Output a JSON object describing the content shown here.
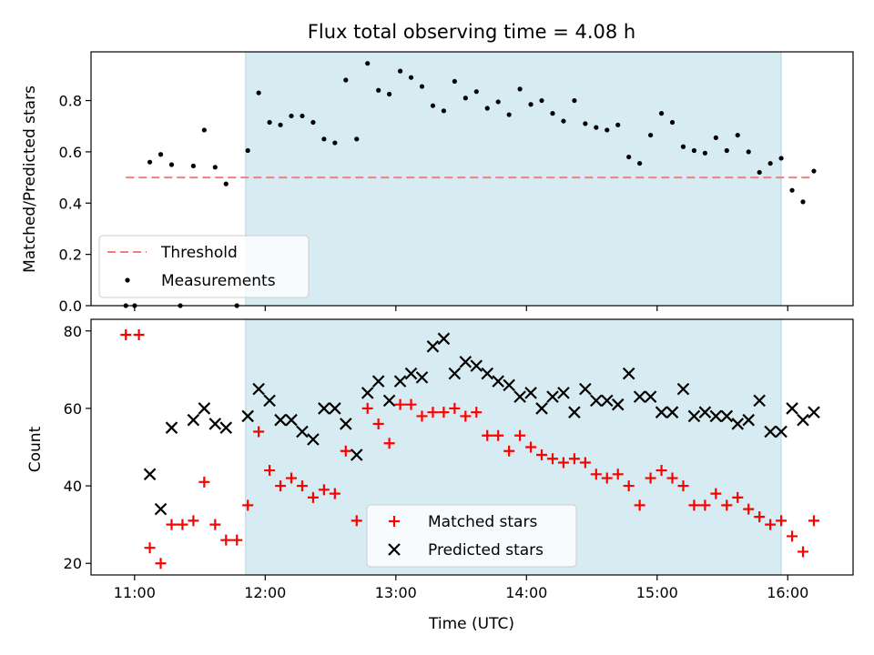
{
  "chart_data": [
    {
      "type": "scatter",
      "title": "Flux total observing time = 4.08 h",
      "xlabel": "",
      "ylabel": "Matched/Predicted stars",
      "xlim": [
        "10:40",
        "16:30"
      ],
      "ylim": [
        0.0,
        0.99
      ],
      "x_ticks": [
        "11:00",
        "12:00",
        "13:00",
        "14:00",
        "15:00",
        "16:00"
      ],
      "y_ticks": [
        "0.0",
        "0.2",
        "0.4",
        "0.6",
        "0.8"
      ],
      "tick_labels_x_shown": false,
      "shaded_interval": {
        "start": "11:51",
        "end": "15:57",
        "color": "#add8e6"
      },
      "threshold": {
        "name": "Threshold",
        "value": 0.5,
        "x_range": [
          "10:56",
          "16:12"
        ],
        "color": "#f08080",
        "style": "dashed"
      },
      "legend": {
        "placement": "lower-left",
        "entries": [
          "Threshold",
          "Measurements"
        ]
      },
      "series": [
        {
          "name": "Measurements",
          "color": "#000000",
          "marker": "dot",
          "points": [
            [
              "10:56",
              0.0
            ],
            [
              "11:00",
              0.0
            ],
            [
              "11:07",
              0.56
            ],
            [
              "11:12",
              0.59
            ],
            [
              "11:17",
              0.55
            ],
            [
              "11:21",
              0.0
            ],
            [
              "11:27",
              0.545
            ],
            [
              "11:32",
              0.685
            ],
            [
              "11:37",
              0.54
            ],
            [
              "11:42",
              0.475
            ],
            [
              "11:47",
              0.0
            ],
            [
              "11:52",
              0.605
            ],
            [
              "11:57",
              0.83
            ],
            [
              "12:02",
              0.715
            ],
            [
              "12:07",
              0.705
            ],
            [
              "12:12",
              0.74
            ],
            [
              "12:17",
              0.74
            ],
            [
              "12:22",
              0.715
            ],
            [
              "12:27",
              0.65
            ],
            [
              "12:32",
              0.635
            ],
            [
              "12:37",
              0.88
            ],
            [
              "12:42",
              0.65
            ],
            [
              "12:47",
              0.945
            ],
            [
              "12:52",
              0.84
            ],
            [
              "12:57",
              0.825
            ],
            [
              "13:02",
              0.915
            ],
            [
              "13:07",
              0.89
            ],
            [
              "13:12",
              0.855
            ],
            [
              "13:17",
              0.78
            ],
            [
              "13:22",
              0.76
            ],
            [
              "13:27",
              0.875
            ],
            [
              "13:32",
              0.81
            ],
            [
              "13:37",
              0.835
            ],
            [
              "13:42",
              0.77
            ],
            [
              "13:47",
              0.795
            ],
            [
              "13:52",
              0.745
            ],
            [
              "13:57",
              0.845
            ],
            [
              "14:02",
              0.785
            ],
            [
              "14:07",
              0.8
            ],
            [
              "14:12",
              0.75
            ],
            [
              "14:17",
              0.72
            ],
            [
              "14:22",
              0.8
            ],
            [
              "14:27",
              0.71
            ],
            [
              "14:32",
              0.695
            ],
            [
              "14:37",
              0.685
            ],
            [
              "14:42",
              0.705
            ],
            [
              "14:47",
              0.58
            ],
            [
              "14:52",
              0.555
            ],
            [
              "14:57",
              0.665
            ],
            [
              "15:02",
              0.75
            ],
            [
              "15:07",
              0.715
            ],
            [
              "15:12",
              0.62
            ],
            [
              "15:17",
              0.605
            ],
            [
              "15:22",
              0.595
            ],
            [
              "15:27",
              0.655
            ],
            [
              "15:32",
              0.605
            ],
            [
              "15:37",
              0.665
            ],
            [
              "15:42",
              0.6
            ],
            [
              "15:47",
              0.52
            ],
            [
              "15:52",
              0.555
            ],
            [
              "15:57",
              0.575
            ],
            [
              "16:02",
              0.45
            ],
            [
              "16:07",
              0.405
            ],
            [
              "16:12",
              0.525
            ]
          ]
        }
      ]
    },
    {
      "type": "scatter",
      "title": "",
      "xlabel": "Time (UTC)",
      "ylabel": "Count",
      "xlim": [
        "10:40",
        "16:30"
      ],
      "ylim": [
        17,
        83
      ],
      "x_ticks": [
        "11:00",
        "12:00",
        "13:00",
        "14:00",
        "15:00",
        "16:00"
      ],
      "y_ticks": [
        "20",
        "40",
        "60",
        "80"
      ],
      "shaded_interval": {
        "start": "11:51",
        "end": "15:57",
        "color": "#add8e6"
      },
      "legend": {
        "placement": "lower-center",
        "entries": [
          "Matched stars",
          "Predicted stars"
        ]
      },
      "series": [
        {
          "name": "Matched stars",
          "color": "#ff0000",
          "marker": "plus",
          "points": [
            [
              "10:56",
              79
            ],
            [
              "11:02",
              79
            ],
            [
              "11:07",
              24
            ],
            [
              "11:12",
              20
            ],
            [
              "11:17",
              30
            ],
            [
              "11:22",
              30
            ],
            [
              "11:27",
              31
            ],
            [
              "11:32",
              41
            ],
            [
              "11:37",
              30
            ],
            [
              "11:42",
              26
            ],
            [
              "11:47",
              26
            ],
            [
              "11:52",
              35
            ],
            [
              "11:57",
              54
            ],
            [
              "12:02",
              44
            ],
            [
              "12:07",
              40
            ],
            [
              "12:12",
              42
            ],
            [
              "12:17",
              40
            ],
            [
              "12:22",
              37
            ],
            [
              "12:27",
              39
            ],
            [
              "12:32",
              38
            ],
            [
              "12:37",
              49
            ],
            [
              "12:42",
              31
            ],
            [
              "12:47",
              60
            ],
            [
              "12:52",
              56
            ],
            [
              "12:57",
              51
            ],
            [
              "13:02",
              61
            ],
            [
              "13:07",
              61
            ],
            [
              "13:12",
              58
            ],
            [
              "13:17",
              59
            ],
            [
              "13:22",
              59
            ],
            [
              "13:27",
              60
            ],
            [
              "13:32",
              58
            ],
            [
              "13:37",
              59
            ],
            [
              "13:42",
              53
            ],
            [
              "13:47",
              53
            ],
            [
              "13:52",
              49
            ],
            [
              "13:57",
              53
            ],
            [
              "14:02",
              50
            ],
            [
              "14:07",
              48
            ],
            [
              "14:12",
              47
            ],
            [
              "14:17",
              46
            ],
            [
              "14:22",
              47
            ],
            [
              "14:27",
              46
            ],
            [
              "14:32",
              43
            ],
            [
              "14:37",
              42
            ],
            [
              "14:42",
              43
            ],
            [
              "14:47",
              40
            ],
            [
              "14:52",
              35
            ],
            [
              "14:57",
              42
            ],
            [
              "15:02",
              44
            ],
            [
              "15:07",
              42
            ],
            [
              "15:12",
              40
            ],
            [
              "15:17",
              35
            ],
            [
              "15:22",
              35
            ],
            [
              "15:27",
              38
            ],
            [
              "15:32",
              35
            ],
            [
              "15:37",
              37
            ],
            [
              "15:42",
              34
            ],
            [
              "15:47",
              32
            ],
            [
              "15:52",
              30
            ],
            [
              "15:57",
              31
            ],
            [
              "16:02",
              27
            ],
            [
              "16:07",
              23
            ],
            [
              "16:12",
              31
            ]
          ]
        },
        {
          "name": "Predicted stars",
          "color": "#000000",
          "marker": "x",
          "points": [
            [
              "11:07",
              43
            ],
            [
              "11:12",
              34
            ],
            [
              "11:17",
              55
            ],
            [
              "11:27",
              57
            ],
            [
              "11:32",
              60
            ],
            [
              "11:37",
              56
            ],
            [
              "11:42",
              55
            ],
            [
              "11:52",
              58
            ],
            [
              "11:57",
              65
            ],
            [
              "12:02",
              62
            ],
            [
              "12:07",
              57
            ],
            [
              "12:12",
              57
            ],
            [
              "12:17",
              54
            ],
            [
              "12:22",
              52
            ],
            [
              "12:27",
              60
            ],
            [
              "12:32",
              60
            ],
            [
              "12:37",
              56
            ],
            [
              "12:42",
              48
            ],
            [
              "12:47",
              64
            ],
            [
              "12:52",
              67
            ],
            [
              "12:57",
              62
            ],
            [
              "13:02",
              67
            ],
            [
              "13:07",
              69
            ],
            [
              "13:12",
              68
            ],
            [
              "13:17",
              76
            ],
            [
              "13:22",
              78
            ],
            [
              "13:27",
              69
            ],
            [
              "13:32",
              72
            ],
            [
              "13:37",
              71
            ],
            [
              "13:42",
              69
            ],
            [
              "13:47",
              67
            ],
            [
              "13:52",
              66
            ],
            [
              "13:57",
              63
            ],
            [
              "14:02",
              64
            ],
            [
              "14:07",
              60
            ],
            [
              "14:12",
              63
            ],
            [
              "14:17",
              64
            ],
            [
              "14:22",
              59
            ],
            [
              "14:27",
              65
            ],
            [
              "14:32",
              62
            ],
            [
              "14:37",
              62
            ],
            [
              "14:42",
              61
            ],
            [
              "14:47",
              69
            ],
            [
              "14:52",
              63
            ],
            [
              "14:57",
              63
            ],
            [
              "15:02",
              59
            ],
            [
              "15:07",
              59
            ],
            [
              "15:12",
              65
            ],
            [
              "15:17",
              58
            ],
            [
              "15:22",
              59
            ],
            [
              "15:27",
              58
            ],
            [
              "15:32",
              58
            ],
            [
              "15:37",
              56
            ],
            [
              "15:42",
              57
            ],
            [
              "15:47",
              62
            ],
            [
              "15:52",
              54
            ],
            [
              "15:57",
              54
            ],
            [
              "16:02",
              60
            ],
            [
              "16:07",
              57
            ],
            [
              "16:12",
              59
            ]
          ]
        }
      ]
    }
  ]
}
